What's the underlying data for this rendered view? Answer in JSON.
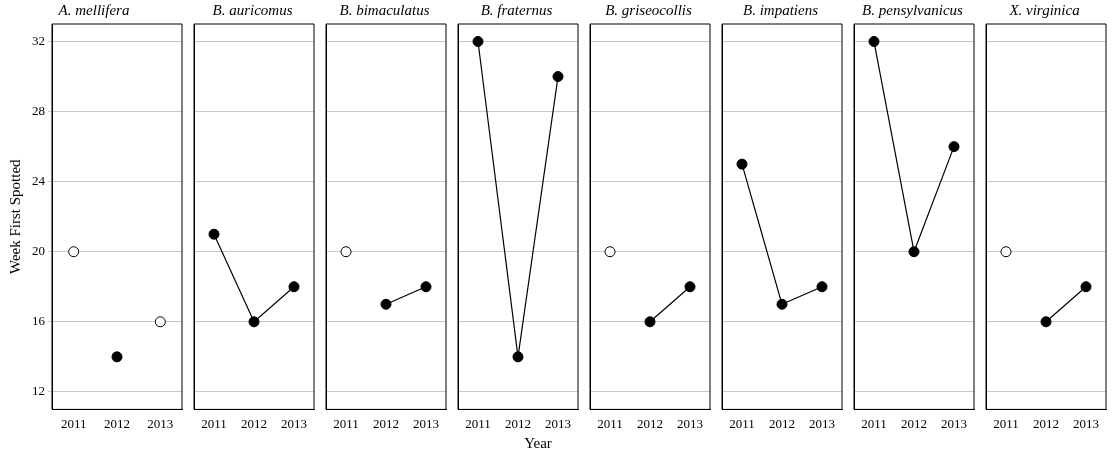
{
  "chart_data": [
    {
      "type": "line",
      "title": "A. mellifera",
      "ylabel": "Week First Spotted",
      "categories": [
        "2011",
        "2012",
        "2013"
      ],
      "ylim": [
        11,
        33
      ],
      "yticks": [
        12,
        16,
        20,
        24,
        28,
        32
      ],
      "grid": "y",
      "marker": "circle",
      "line_style": "solid",
      "series": [
        {
          "color": "#000000",
          "values": [
            null,
            14,
            null
          ]
        },
        {
          "type": "scatter",
          "color": "#ffffff",
          "values": [
            20,
            null,
            16
          ]
        }
      ]
    },
    {
      "type": "line",
      "title": "B. auricomus",
      "categories": [
        "2011",
        "2012",
        "2013"
      ],
      "ylim": [
        11,
        33
      ],
      "yticks": [
        12,
        16,
        20,
        24,
        28,
        32
      ],
      "grid": "y",
      "marker": "circle",
      "line_style": "solid",
      "tick_labels": "x",
      "series": [
        {
          "color": "#000000",
          "values": [
            21,
            16,
            18
          ]
        }
      ]
    },
    {
      "type": "line",
      "title": "B. bimaculatus",
      "categories": [
        "2011",
        "2012",
        "2013"
      ],
      "ylim": [
        11,
        33
      ],
      "yticks": [
        12,
        16,
        20,
        24,
        28,
        32
      ],
      "grid": "y",
      "marker": "circle",
      "line_style": "solid",
      "tick_labels": "x",
      "series": [
        {
          "color": "#000000",
          "values": [
            null,
            17,
            18
          ]
        },
        {
          "type": "scatter",
          "color": "#ffffff",
          "values": [
            20,
            null,
            null
          ]
        }
      ]
    },
    {
      "type": "line",
      "title": "B. fraternus",
      "xlabel": "Year",
      "categories": [
        "2011",
        "2012",
        "2013"
      ],
      "ylim": [
        11,
        33
      ],
      "yticks": [
        12,
        16,
        20,
        24,
        28,
        32
      ],
      "grid": "y",
      "marker": "circle",
      "line_style": "solid",
      "tick_labels": "x",
      "series": [
        {
          "color": "#000000",
          "values": [
            32,
            14,
            30
          ]
        }
      ]
    },
    {
      "type": "line",
      "title": "B. griseocollis",
      "categories": [
        "2011",
        "2012",
        "2013"
      ],
      "ylim": [
        11,
        33
      ],
      "yticks": [
        12,
        16,
        20,
        24,
        28,
        32
      ],
      "grid": "y",
      "marker": "circle",
      "line_style": "solid",
      "tick_labels": "x",
      "series": [
        {
          "color": "#000000",
          "values": [
            null,
            16,
            18
          ]
        },
        {
          "type": "scatter",
          "color": "#ffffff",
          "values": [
            20,
            null,
            null
          ]
        }
      ]
    },
    {
      "type": "line",
      "title": "B. impatiens",
      "categories": [
        "2011",
        "2012",
        "2013"
      ],
      "ylim": [
        11,
        33
      ],
      "yticks": [
        12,
        16,
        20,
        24,
        28,
        32
      ],
      "grid": "y",
      "marker": "circle",
      "line_style": "solid",
      "tick_labels": "x",
      "series": [
        {
          "color": "#000000",
          "values": [
            25,
            17,
            18
          ]
        }
      ]
    },
    {
      "type": "line",
      "title": "B. pensylvanicus",
      "categories": [
        "2011",
        "2012",
        "2013"
      ],
      "ylim": [
        11,
        33
      ],
      "yticks": [
        12,
        16,
        20,
        24,
        28,
        32
      ],
      "grid": "y",
      "marker": "circle",
      "line_style": "solid",
      "tick_labels": "x",
      "series": [
        {
          "color": "#000000",
          "values": [
            32,
            20,
            26
          ]
        }
      ]
    },
    {
      "type": "line",
      "title": "X. virginica",
      "categories": [
        "2011",
        "2012",
        "2013"
      ],
      "ylim": [
        11,
        33
      ],
      "yticks": [
        12,
        16,
        20,
        24,
        28,
        32
      ],
      "grid": "y",
      "marker": "circle",
      "line_style": "solid",
      "tick_labels": "x",
      "series": [
        {
          "color": "#000000",
          "values": [
            null,
            16,
            18
          ]
        },
        {
          "type": "scatter",
          "color": "#ffffff",
          "values": [
            20,
            null,
            null
          ]
        }
      ]
    }
  ]
}
